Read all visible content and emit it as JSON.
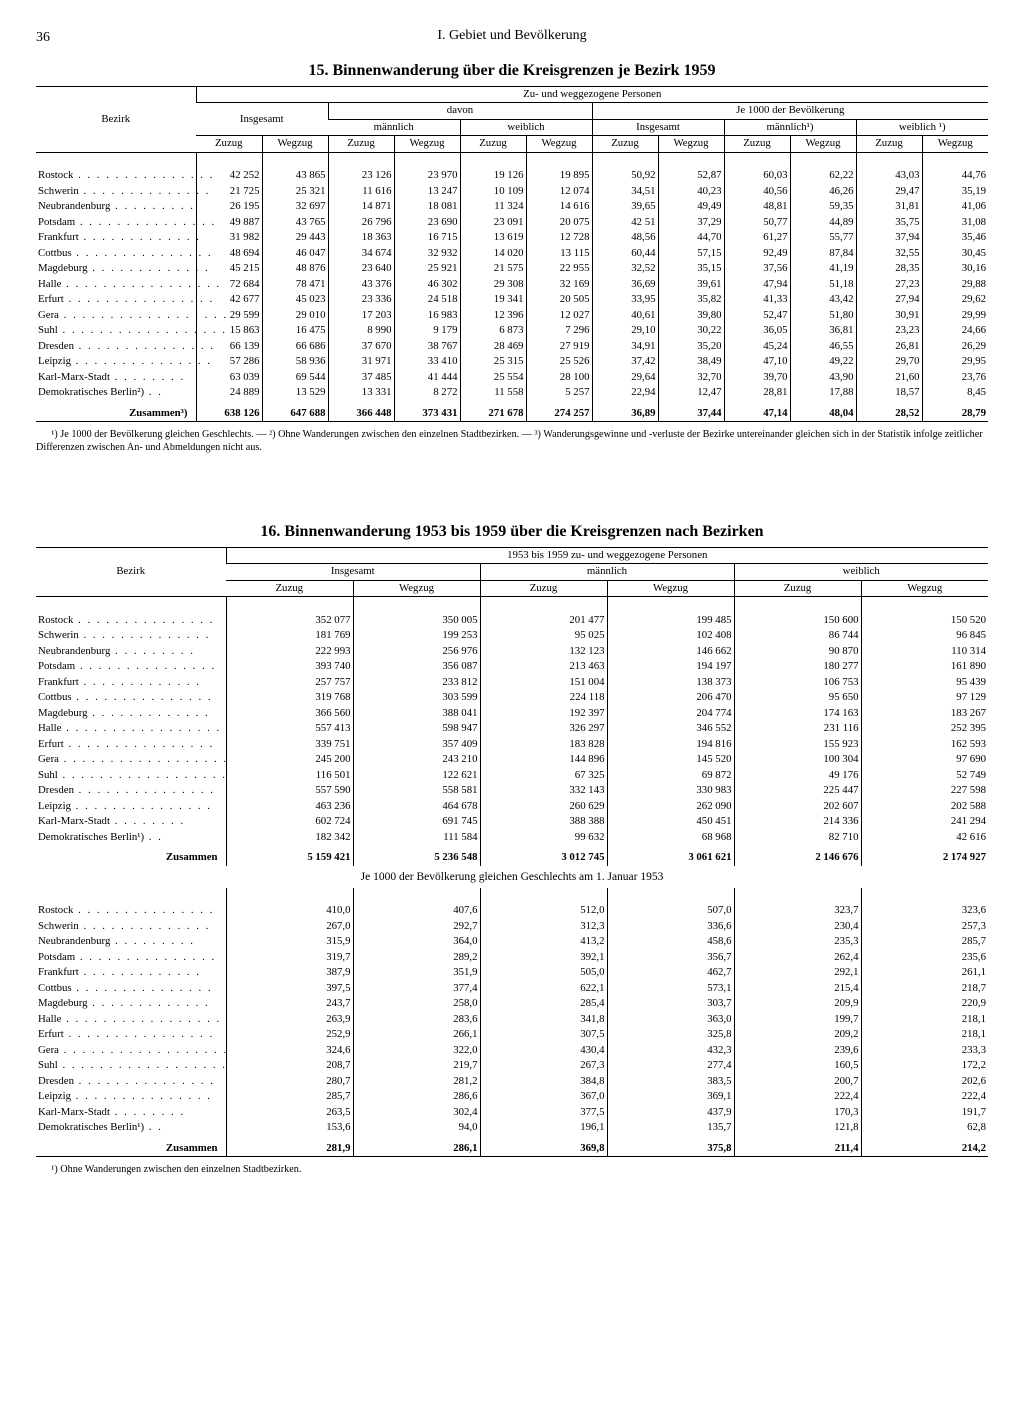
{
  "page_number": "36",
  "chapter_title": "I. Gebiet und Bevölkerung",
  "table15": {
    "title": "15. Binnenwanderung über die Kreisgrenzen je Bezirk 1959",
    "super_header": "Zu- und weggezogene Personen",
    "col_groups": {
      "bezirk": "Bezirk",
      "insgesamt": "Insgesamt",
      "davon": "davon",
      "je1000": "Je 1000 der Bevölkerung",
      "mannlich": "männlich",
      "weiblich": "weiblich",
      "mannlich_fn": "männlich¹)",
      "weiblich_fn": "weiblich ¹)",
      "zuzug": "Zuzug",
      "wegzug": "Wegzug"
    },
    "rows": [
      {
        "name": "Rostock",
        "v": [
          "42 252",
          "43 865",
          "23 126",
          "23 970",
          "19 126",
          "19 895",
          "50,92",
          "52,87",
          "60,03",
          "62,22",
          "43,03",
          "44,76"
        ]
      },
      {
        "name": "Schwerin",
        "v": [
          "21 725",
          "25 321",
          "11 616",
          "13 247",
          "10 109",
          "12 074",
          "34,51",
          "40,23",
          "40,56",
          "46,26",
          "29,47",
          "35,19"
        ]
      },
      {
        "name": "Neubrandenburg",
        "v": [
          "26 195",
          "32 697",
          "14 871",
          "18 081",
          "11 324",
          "14 616",
          "39,65",
          "49,49",
          "48,81",
          "59,35",
          "31,81",
          "41,06"
        ]
      },
      {
        "name": "Potsdam",
        "v": [
          "49 887",
          "43 765",
          "26 796",
          "23 690",
          "23 091",
          "20 075",
          "42 51",
          "37,29",
          "50,77",
          "44,89",
          "35,75",
          "31,08"
        ]
      },
      {
        "name": "Frankfurt",
        "v": [
          "31 982",
          "29 443",
          "18 363",
          "16 715",
          "13 619",
          "12 728",
          "48,56",
          "44,70",
          "61,27",
          "55,77",
          "37,94",
          "35,46"
        ]
      },
      {
        "name": "Cottbus",
        "v": [
          "48 694",
          "46 047",
          "34 674",
          "32 932",
          "14 020",
          "13 115",
          "60,44",
          "57,15",
          "92,49",
          "87,84",
          "32,55",
          "30,45"
        ]
      },
      {
        "name": "Magdeburg",
        "v": [
          "45 215",
          "48 876",
          "23 640",
          "25 921",
          "21 575",
          "22 955",
          "32,52",
          "35,15",
          "37,56",
          "41,19",
          "28,35",
          "30,16"
        ]
      },
      {
        "name": "Halle",
        "v": [
          "72 684",
          "78 471",
          "43 376",
          "46 302",
          "29 308",
          "32 169",
          "36,69",
          "39,61",
          "47,94",
          "51,18",
          "27,23",
          "29,88"
        ]
      },
      {
        "name": "Erfurt",
        "v": [
          "42 677",
          "45 023",
          "23 336",
          "24 518",
          "19 341",
          "20 505",
          "33,95",
          "35,82",
          "41,33",
          "43,42",
          "27,94",
          "29,62"
        ]
      },
      {
        "name": "Gera",
        "v": [
          "29 599",
          "29 010",
          "17 203",
          "16 983",
          "12 396",
          "12 027",
          "40,61",
          "39,80",
          "52,47",
          "51,80",
          "30,91",
          "29,99"
        ]
      },
      {
        "name": "Suhl",
        "v": [
          "15 863",
          "16 475",
          "8 990",
          "9 179",
          "6 873",
          "7 296",
          "29,10",
          "30,22",
          "36,05",
          "36,81",
          "23,23",
          "24,66"
        ]
      },
      {
        "name": "Dresden",
        "v": [
          "66 139",
          "66 686",
          "37 670",
          "38 767",
          "28 469",
          "27 919",
          "34,91",
          "35,20",
          "45,24",
          "46,55",
          "26,81",
          "26,29"
        ]
      },
      {
        "name": "Leipzig",
        "v": [
          "57 286",
          "58 936",
          "31 971",
          "33 410",
          "25 315",
          "25 526",
          "37,42",
          "38,49",
          "47,10",
          "49,22",
          "29,70",
          "29,95"
        ]
      },
      {
        "name": "Karl-Marx-Stadt",
        "v": [
          "63 039",
          "69 544",
          "37 485",
          "41 444",
          "25 554",
          "28 100",
          "29,64",
          "32,70",
          "39,70",
          "43,90",
          "21,60",
          "23,76"
        ]
      },
      {
        "name": "Demokratisches Berlin²)",
        "v": [
          "24 889",
          "13 529",
          "13 331",
          "8 272",
          "11 558",
          "5 257",
          "22,94",
          "12,47",
          "28,81",
          "17,88",
          "18,57",
          "8,45"
        ]
      }
    ],
    "sum_label": "Zusammen³)",
    "sum": [
      "638 126",
      "647 688",
      "366 448",
      "373 431",
      "271 678",
      "274 257",
      "36,89",
      "37,44",
      "47,14",
      "48,04",
      "28,52",
      "28,79"
    ],
    "footnote": "¹) Je 1000 der Bevölkerung gleichen Geschlechts. — ²) Ohne Wanderungen zwischen den einzelnen Stadtbezirken. — ³) Wanderungsgewinne und -verluste der Bezirke untereinander gleichen sich in der Statistik infolge zeitlicher Differenzen zwischen An- und Abmeldungen nicht aus."
  },
  "table16": {
    "title": "16. Binnenwanderung 1953 bis 1959 über die Kreisgrenzen nach Bezirken",
    "super_header": "1953 bis 1959 zu- und weggezogene Personen",
    "col_groups": {
      "bezirk": "Bezirk",
      "insgesamt": "Insgesamt",
      "mannlich": "männlich",
      "weiblich": "weiblich",
      "zuzug": "Zuzug",
      "wegzug": "Wegzug"
    },
    "sectionA": [
      {
        "name": "Rostock",
        "v": [
          "352 077",
          "350 005",
          "201 477",
          "199 485",
          "150 600",
          "150 520"
        ]
      },
      {
        "name": "Schwerin",
        "v": [
          "181 769",
          "199 253",
          "95 025",
          "102 408",
          "86 744",
          "96 845"
        ]
      },
      {
        "name": "Neubrandenburg",
        "v": [
          "222 993",
          "256 976",
          "132 123",
          "146 662",
          "90 870",
          "110 314"
        ]
      },
      {
        "name": "Potsdam",
        "v": [
          "393 740",
          "356 087",
          "213 463",
          "194 197",
          "180 277",
          "161 890"
        ]
      },
      {
        "name": "Frankfurt",
        "v": [
          "257 757",
          "233 812",
          "151 004",
          "138 373",
          "106 753",
          "95 439"
        ]
      },
      {
        "name": "Cottbus",
        "v": [
          "319 768",
          "303 599",
          "224 118",
          "206 470",
          "95 650",
          "97 129"
        ]
      },
      {
        "name": "Magdeburg",
        "v": [
          "366 560",
          "388 041",
          "192 397",
          "204 774",
          "174 163",
          "183 267"
        ]
      },
      {
        "name": "Halle",
        "v": [
          "557 413",
          "598 947",
          "326 297",
          "346 552",
          "231 116",
          "252 395"
        ]
      },
      {
        "name": "Erfurt",
        "v": [
          "339 751",
          "357 409",
          "183 828",
          "194 816",
          "155 923",
          "162 593"
        ]
      },
      {
        "name": "Gera",
        "v": [
          "245 200",
          "243 210",
          "144 896",
          "145 520",
          "100 304",
          "97 690"
        ]
      },
      {
        "name": "Suhl",
        "v": [
          "116 501",
          "122 621",
          "67 325",
          "69 872",
          "49 176",
          "52 749"
        ]
      },
      {
        "name": "Dresden",
        "v": [
          "557 590",
          "558 581",
          "332 143",
          "330 983",
          "225 447",
          "227 598"
        ]
      },
      {
        "name": "Leipzig",
        "v": [
          "463 236",
          "464 678",
          "260 629",
          "262 090",
          "202 607",
          "202 588"
        ]
      },
      {
        "name": "Karl-Marx-Stadt",
        "v": [
          "602 724",
          "691 745",
          "388 388",
          "450 451",
          "214 336",
          "241 294"
        ]
      },
      {
        "name": "Demokratisches Berlin¹)",
        "v": [
          "182 342",
          "111 584",
          "99 632",
          "68 968",
          "82 710",
          "42 616"
        ]
      }
    ],
    "sumA_label": "Zusammen",
    "sumA": [
      "5 159 421",
      "5 236 548",
      "3 012 745",
      "3 061 621",
      "2 146 676",
      "2 174 927"
    ],
    "sectionB_title": "Je 1000 der Bevölkerung gleichen Geschlechts am 1. Januar 1953",
    "sectionB": [
      {
        "name": "Rostock",
        "v": [
          "410,0",
          "407,6",
          "512,0",
          "507,0",
          "323,7",
          "323,6"
        ]
      },
      {
        "name": "Schwerin",
        "v": [
          "267,0",
          "292,7",
          "312,3",
          "336,6",
          "230,4",
          "257,3"
        ]
      },
      {
        "name": "Neubrandenburg",
        "v": [
          "315,9",
          "364,0",
          "413,2",
          "458,6",
          "235,3",
          "285,7"
        ]
      },
      {
        "name": "Potsdam",
        "v": [
          "319,7",
          "289,2",
          "392,1",
          "356,7",
          "262,4",
          "235,6"
        ]
      },
      {
        "name": "Frankfurt",
        "v": [
          "387,9",
          "351,9",
          "505,0",
          "462,7",
          "292,1",
          "261,1"
        ]
      },
      {
        "name": "Cottbus",
        "v": [
          "397,5",
          "377,4",
          "622,1",
          "573,1",
          "215,4",
          "218,7"
        ]
      },
      {
        "name": "Magdeburg",
        "v": [
          "243,7",
          "258,0",
          "285,4",
          "303,7",
          "209,9",
          "220,9"
        ]
      },
      {
        "name": "Halle",
        "v": [
          "263,9",
          "283,6",
          "341,8",
          "363,0",
          "199,7",
          "218,1"
        ]
      },
      {
        "name": "Erfurt",
        "v": [
          "252,9",
          "266,1",
          "307,5",
          "325,8",
          "209,2",
          "218,1"
        ]
      },
      {
        "name": "Gera",
        "v": [
          "324,6",
          "322,0",
          "430,4",
          "432,3",
          "239,6",
          "233,3"
        ]
      },
      {
        "name": "Suhl",
        "v": [
          "208,7",
          "219,7",
          "267,3",
          "277,4",
          "160,5",
          "172,2"
        ]
      },
      {
        "name": "Dresden",
        "v": [
          "280,7",
          "281,2",
          "384,8",
          "383,5",
          "200,7",
          "202,6"
        ]
      },
      {
        "name": "Leipzig",
        "v": [
          "285,7",
          "286,6",
          "367,0",
          "369,1",
          "222,4",
          "222,4"
        ]
      },
      {
        "name": "Karl-Marx-Stadt",
        "v": [
          "263,5",
          "302,4",
          "377,5",
          "437,9",
          "170,3",
          "191,7"
        ]
      },
      {
        "name": "Demokratisches Berlin¹)",
        "v": [
          "153,6",
          "94,0",
          "196,1",
          "135,7",
          "121,8",
          "62,8"
        ]
      }
    ],
    "sumB_label": "Zusammen",
    "sumB": [
      "281,9",
      "286,1",
      "369,8",
      "375,8",
      "211,4",
      "214,2"
    ],
    "footnote": "¹) Ohne Wanderungen zwischen den einzelnen Stadtbezirken."
  }
}
